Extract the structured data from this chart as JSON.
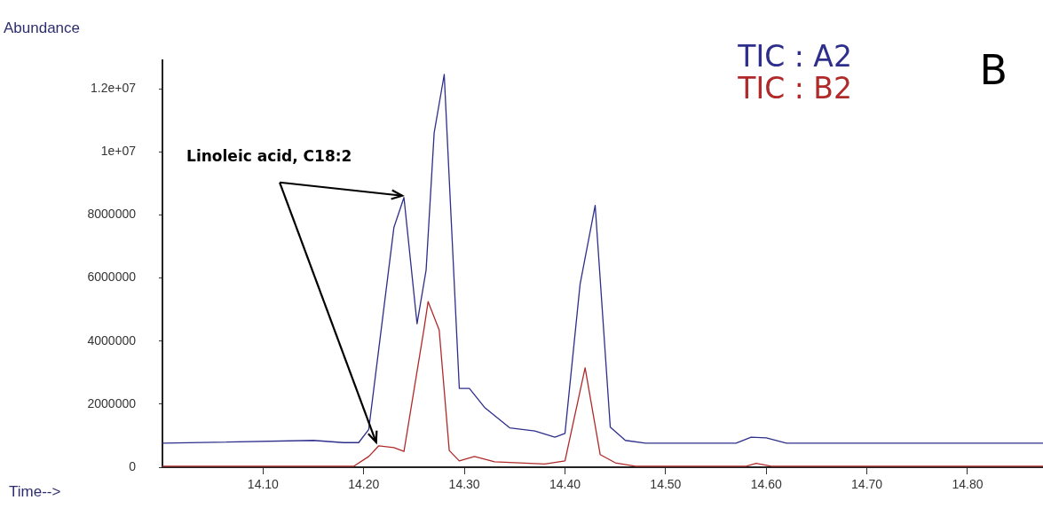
{
  "chart_data": {
    "type": "line",
    "xlabel": "Time-->",
    "ylabel": "Abundance",
    "annotations": [
      {
        "text": "Linoleic acid, C18:2",
        "x": 14.24,
        "y": 8550000
      },
      "B"
    ],
    "xlim": [
      14.0,
      14.875
    ],
    "ylim": [
      0,
      12900000
    ],
    "xticks": [
      {
        "value": 14.1,
        "label": "14.10"
      },
      {
        "value": 14.2,
        "label": "14.20"
      },
      {
        "value": 14.3,
        "label": "14.30"
      },
      {
        "value": 14.4,
        "label": "14.40"
      },
      {
        "value": 14.5,
        "label": "14.50"
      },
      {
        "value": 14.6,
        "label": "14.60"
      },
      {
        "value": 14.7,
        "label": "14.70"
      },
      {
        "value": 14.8,
        "label": "14.80"
      }
    ],
    "yticks": [
      0,
      2000000,
      4000000,
      6000000,
      8000000,
      {
        "value": 10000000,
        "label": "1e+07"
      },
      {
        "value": 12000000,
        "label": "1.2e+07"
      }
    ],
    "grid": false,
    "legend": "top right",
    "marker": "none",
    "line_style": "solid",
    "series": [
      {
        "name": "TIC : A2",
        "color": "#2e2e8c",
        "x": [
          14.0,
          14.15,
          14.18,
          14.195,
          14.205,
          14.23,
          14.24,
          14.253,
          14.262,
          14.27,
          14.28,
          14.295,
          14.305,
          14.32,
          14.345,
          14.37,
          14.39,
          14.4,
          14.415,
          14.43,
          14.445,
          14.46,
          14.48,
          14.57,
          14.585,
          14.6,
          14.62,
          14.875
        ],
        "values": [
          760000,
          850000,
          780000,
          780000,
          1200000,
          7600000,
          8550000,
          4550000,
          6250000,
          10600000,
          12450000,
          2500000,
          2500000,
          1900000,
          1250000,
          1150000,
          950000,
          1070000,
          5800000,
          8300000,
          1270000,
          850000,
          760000,
          760000,
          950000,
          930000,
          760000,
          760000
        ]
      },
      {
        "name": "TIC : B2",
        "color": "#b02a2a",
        "x": [
          14.0,
          14.19,
          14.205,
          14.215,
          14.23,
          14.24,
          14.26,
          14.264,
          14.275,
          14.285,
          14.295,
          14.31,
          14.33,
          14.38,
          14.4,
          14.42,
          14.435,
          14.45,
          14.47,
          14.58,
          14.59,
          14.605,
          14.875
        ],
        "values": [
          30000,
          30000,
          340000,
          680000,
          620000,
          500000,
          4400000,
          5250000,
          4350000,
          530000,
          200000,
          340000,
          170000,
          100000,
          200000,
          3150000,
          400000,
          140000,
          30000,
          30000,
          120000,
          30000,
          30000
        ]
      }
    ]
  }
}
